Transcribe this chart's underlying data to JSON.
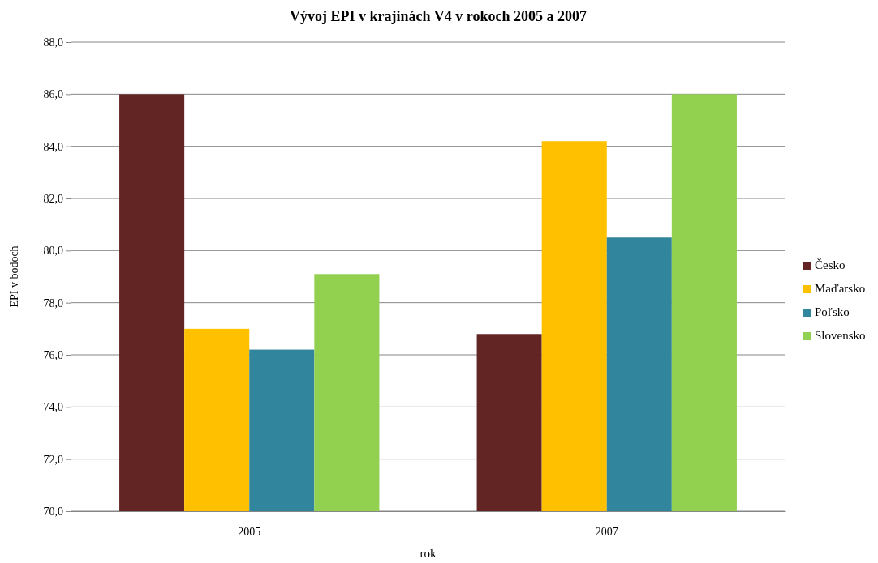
{
  "chart_data": {
    "type": "bar",
    "title": "Vývoj EPI v krajinách V4 v rokoch 2005 a 2007",
    "xlabel": "rok",
    "ylabel": "EPI v bodoch",
    "categories": [
      "2005",
      "2007"
    ],
    "series": [
      {
        "name": "Česko",
        "color": "#632523",
        "values": [
          86.0,
          76.8
        ]
      },
      {
        "name": "Maďarsko",
        "color": "#ffc000",
        "values": [
          77.0,
          84.2
        ]
      },
      {
        "name": "Poľsko",
        "color": "#31859c",
        "values": [
          76.2,
          80.5
        ]
      },
      {
        "name": "Slovensko",
        "color": "#92d050",
        "values": [
          79.1,
          86.0
        ]
      }
    ],
    "ylim": [
      70,
      88
    ],
    "yticks": [
      {
        "value": 70,
        "label": "70,0"
      },
      {
        "value": 72,
        "label": "72,0"
      },
      {
        "value": 74,
        "label": "74,0"
      },
      {
        "value": 76,
        "label": "76,0"
      },
      {
        "value": 78,
        "label": "78,0"
      },
      {
        "value": 80,
        "label": "80,0"
      },
      {
        "value": 82,
        "label": "82,0"
      },
      {
        "value": 84,
        "label": "84,0"
      },
      {
        "value": 86,
        "label": "86,0"
      },
      {
        "value": 88,
        "label": "88,0"
      }
    ],
    "grid": "y",
    "legend": "right"
  }
}
